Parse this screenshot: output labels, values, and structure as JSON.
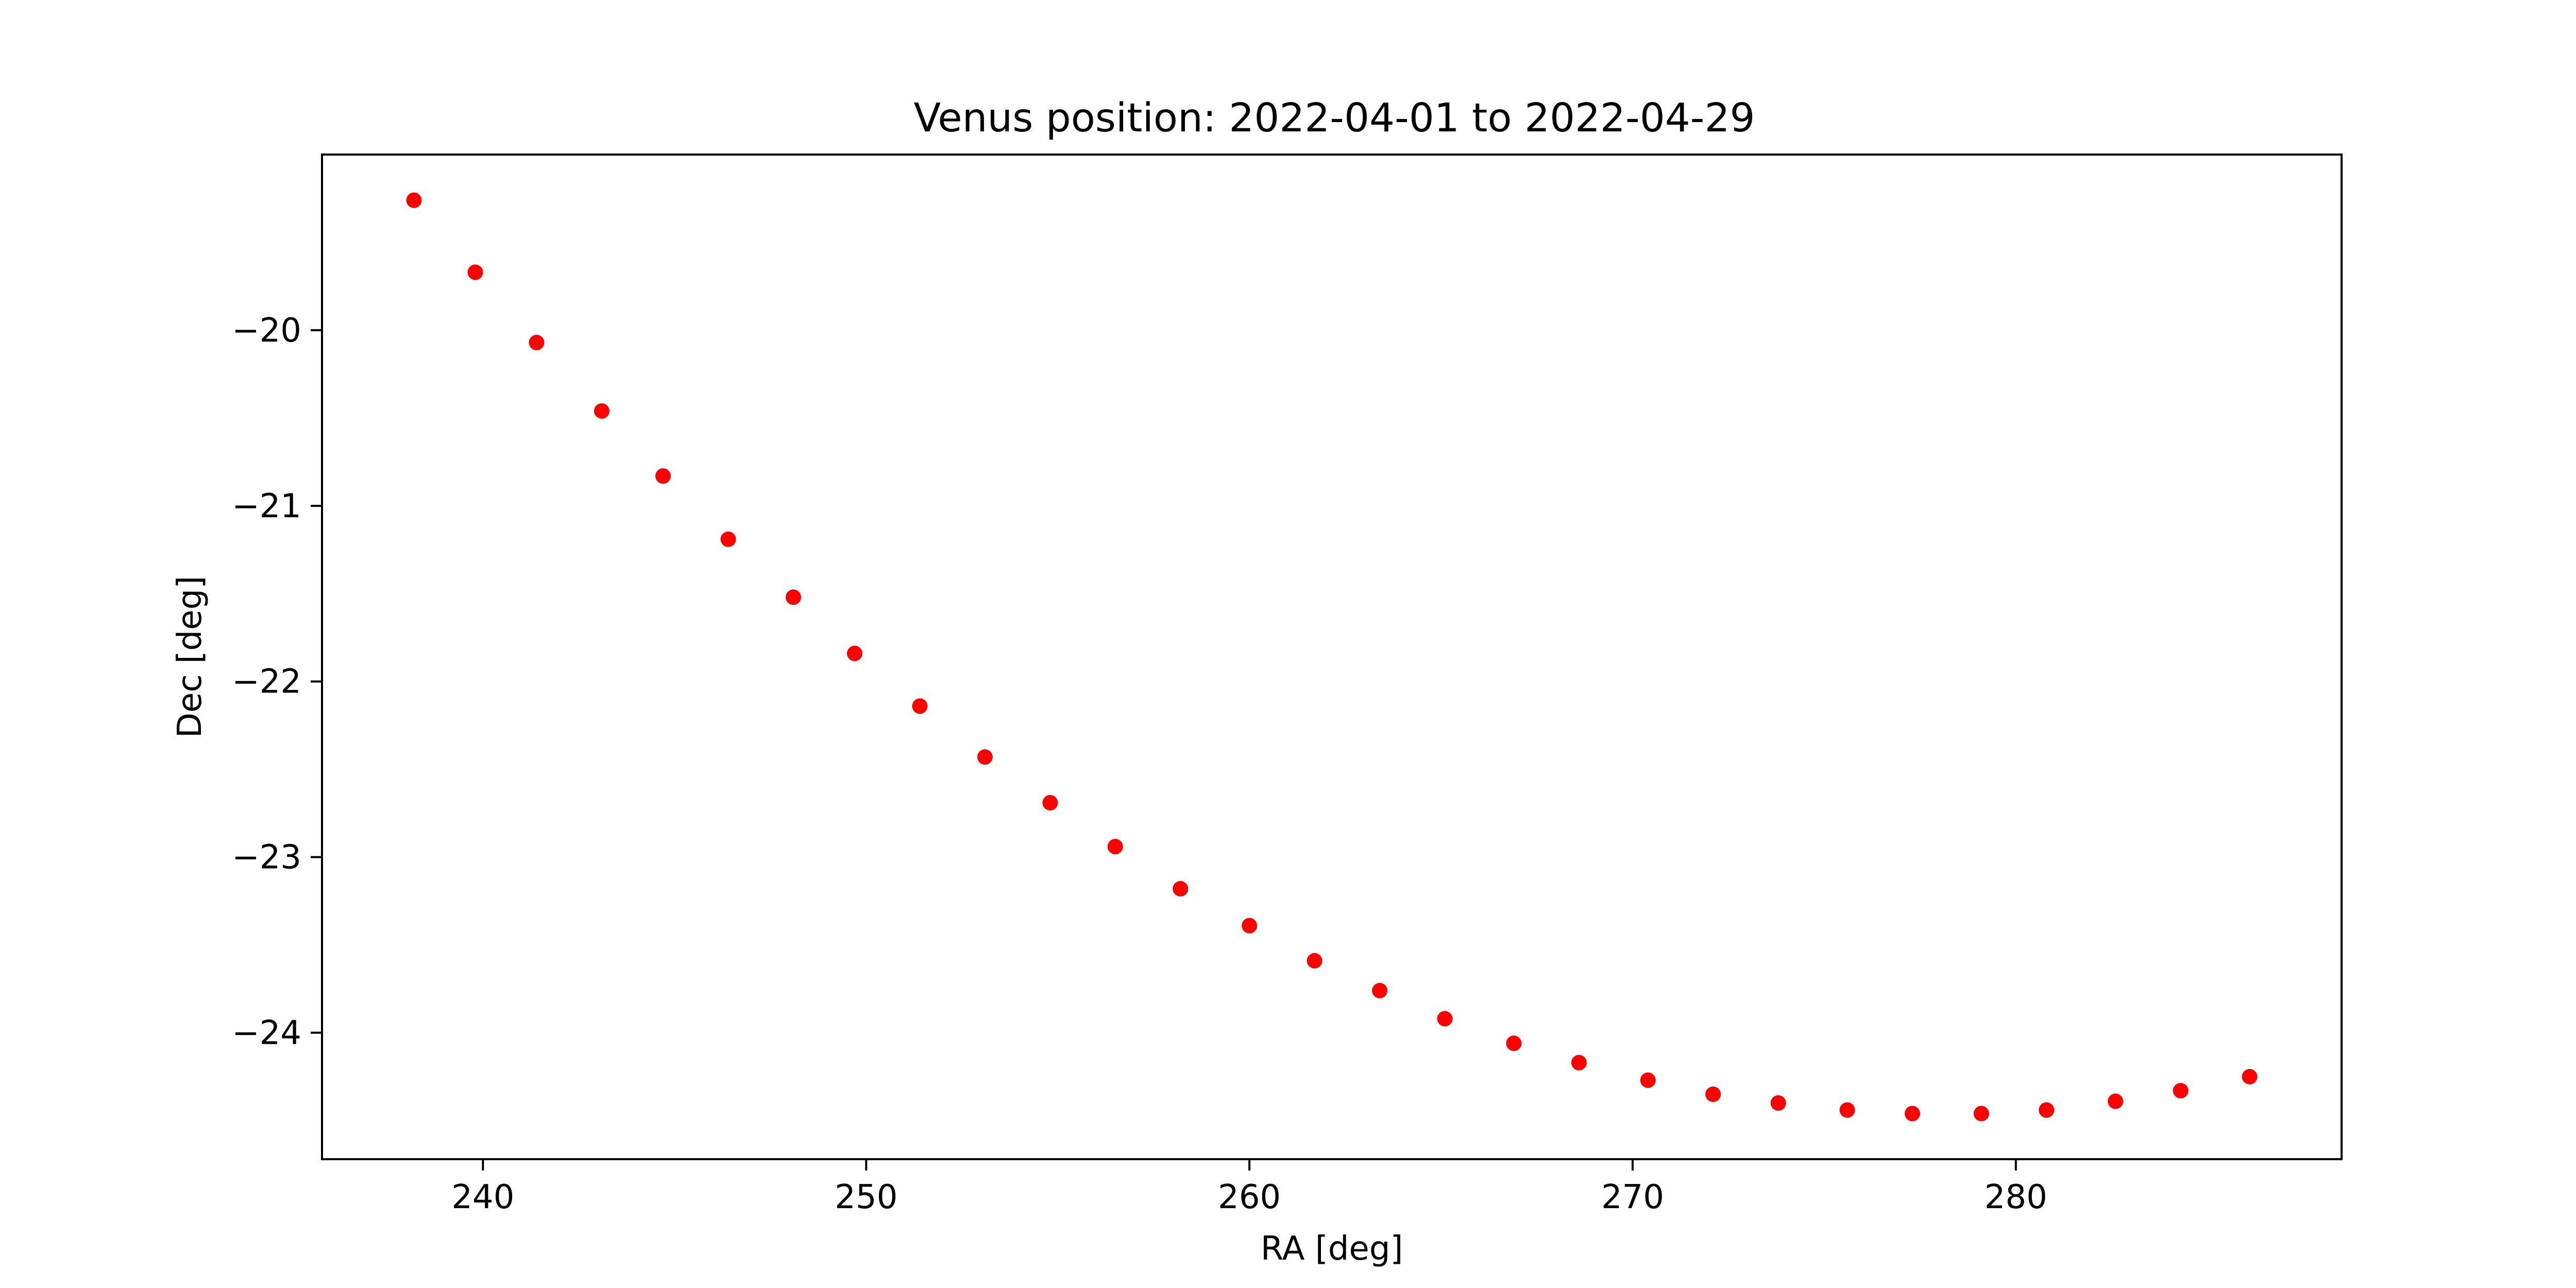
{
  "chart_data": {
    "type": "scatter",
    "title": "Venus position: 2022-04-01 to 2022-04-29",
    "xlabel": "RA [deg]",
    "ylabel": "Dec [deg]",
    "xlim": [
      235.8,
      288.5
    ],
    "ylim": [
      -24.72,
      -19.0
    ],
    "xticks": [
      240,
      250,
      260,
      270,
      280
    ],
    "yticks": [
      -20,
      -21,
      -22,
      -23,
      -24
    ],
    "xtick_labels": [
      "240",
      "250",
      "260",
      "270",
      "280"
    ],
    "ytick_labels": [
      "−20",
      "−21",
      "−22",
      "−23",
      "−24"
    ],
    "grid": false,
    "legend": "none",
    "marker_color": "#ff0000",
    "series": [
      {
        "x": [
          238.2,
          239.8,
          241.4,
          243.1,
          244.7,
          246.4,
          248.1,
          249.7,
          251.4,
          253.1,
          254.8,
          256.5,
          258.2,
          260.0,
          261.7,
          263.4,
          265.1,
          266.9,
          268.6,
          270.4,
          272.1,
          273.8,
          275.6,
          277.3,
          279.1,
          280.8,
          282.6,
          284.3,
          286.1
        ],
        "y": [
          -19.26,
          -19.67,
          -20.07,
          -20.46,
          -20.83,
          -21.19,
          -21.52,
          -21.84,
          -22.14,
          -22.43,
          -22.69,
          -22.94,
          -23.18,
          -23.39,
          -23.59,
          -23.76,
          -23.92,
          -24.06,
          -24.17,
          -24.27,
          -24.35,
          -24.4,
          -24.44,
          -24.46,
          -24.46,
          -24.44,
          -24.39,
          -24.33,
          -24.25
        ]
      }
    ]
  }
}
